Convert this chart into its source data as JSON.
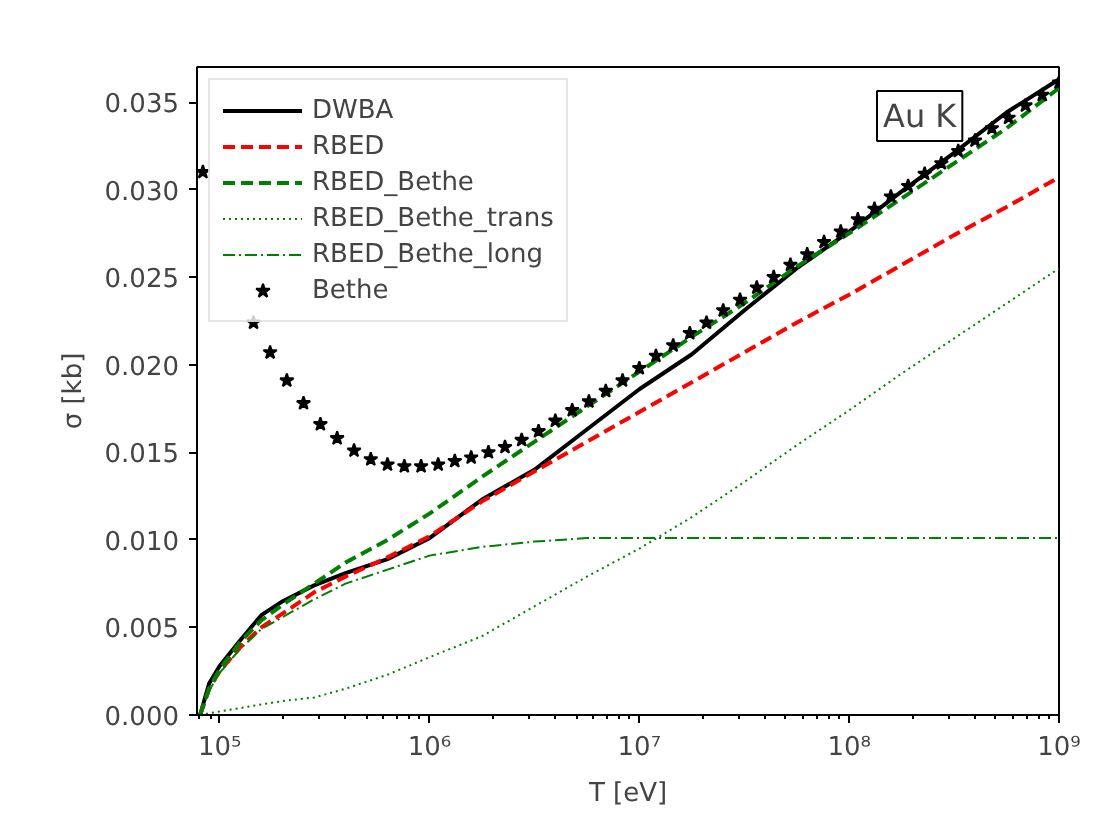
{
  "chart_data": {
    "type": "line",
    "xlabel": "T [eV]",
    "ylabel": "σ [kb]",
    "annotations": [
      "Au K"
    ],
    "log": "x",
    "grid": false,
    "legend": "top left",
    "xlim": [
      78000,
      1000000000
    ],
    "xticks": [
      {
        "value": 100000,
        "label": "10⁵"
      },
      {
        "value": 1000000,
        "label": "10⁶"
      },
      {
        "value": 10000000,
        "label": "10⁷"
      },
      {
        "value": 100000000,
        "label": "10⁸"
      },
      {
        "value": 1000000000,
        "label": "10⁹"
      }
    ],
    "ylim": [
      0,
      0.037
    ],
    "yticks": [
      {
        "value": 0,
        "label": "0.000"
      },
      {
        "value": 0.005,
        "label": "0.005"
      },
      {
        "value": 0.01,
        "label": "0.010"
      },
      {
        "value": 0.015,
        "label": "0.015"
      },
      {
        "value": 0.02,
        "label": "0.020"
      },
      {
        "value": 0.025,
        "label": "0.025"
      },
      {
        "value": 0.03,
        "label": "0.030"
      },
      {
        "value": 0.035,
        "label": "0.035"
      }
    ],
    "x": [
      80700,
      89100,
      100000,
      126000,
      158000,
      200000,
      282000,
      398000,
      631000,
      1000000,
      1780000,
      3160000,
      5620000,
      10000000,
      17800000,
      31600000,
      56200000,
      100000000,
      178000000,
      316000000,
      562000000,
      1000000000
    ],
    "series": [
      {
        "name": "DWBA",
        "color": "#000000",
        "line_style": "solid",
        "values": [
          0,
          0.0018,
          0.0028,
          0.0043,
          0.0057,
          0.0065,
          0.0074,
          0.0081,
          0.0089,
          0.0101,
          0.0123,
          0.014,
          0.0163,
          0.0186,
          0.0206,
          0.0231,
          0.0255,
          0.0276,
          0.0299,
          0.0321,
          0.0344,
          0.0363
        ]
      },
      {
        "name": "RBED",
        "color": "#ff0000",
        "line_style": "dashed",
        "values": [
          0,
          0.0015,
          0.0025,
          0.0039,
          0.005,
          0.0058,
          0.007,
          0.0079,
          0.009,
          0.0102,
          0.0122,
          0.0139,
          0.0156,
          0.0173,
          0.019,
          0.0207,
          0.0224,
          0.024,
          0.0257,
          0.0274,
          0.029,
          0.0307
        ]
      },
      {
        "name": "RBED_Bethe",
        "color": "#008000",
        "line_style": "dashed",
        "values": [
          0,
          0.0015,
          0.0026,
          0.0042,
          0.0054,
          0.0063,
          0.0075,
          0.0087,
          0.01,
          0.0115,
          0.0136,
          0.0156,
          0.0176,
          0.0196,
          0.0216,
          0.0235,
          0.0256,
          0.0275,
          0.0295,
          0.0315,
          0.0335,
          0.0358
        ]
      },
      {
        "name": "RBED_Bethe_trans",
        "color": "#008000",
        "line_style": "dotted",
        "values": [
          0,
          0.0001,
          0.0002,
          0.0004,
          0.0006,
          0.0008,
          0.001,
          0.0015,
          0.0023,
          0.0033,
          0.0045,
          0.0062,
          0.0079,
          0.0095,
          0.0113,
          0.0133,
          0.0154,
          0.0174,
          0.0195,
          0.0215,
          0.0235,
          0.0255
        ]
      },
      {
        "name": "RBED_Bethe_long",
        "color": "#008000",
        "line_style": "dashdot",
        "values": [
          0,
          0.0014,
          0.0024,
          0.0038,
          0.0049,
          0.0056,
          0.0066,
          0.0075,
          0.0083,
          0.0091,
          0.0096,
          0.0099,
          0.0101,
          0.0101,
          0.0101,
          0.0101,
          0.0101,
          0.0101,
          0.0101,
          0.0101,
          0.0101,
          0.0101
        ]
      },
      {
        "name": "Bethe",
        "type": "scatter",
        "marker": "star",
        "color": "#000000",
        "x": [
          83200,
          100000,
          120000,
          145000,
          174000,
          209000,
          251000,
          302000,
          363000,
          437000,
          525000,
          631000,
          759000,
          912000,
          1100000,
          1320000,
          1580000,
          1910000,
          2290000,
          2750000,
          3310000,
          3980000,
          4790000,
          5750000,
          6920000,
          8320000,
          10000000,
          12000000,
          14500000,
          17400000,
          20900000,
          25100000,
          30200000,
          36300000,
          43700000,
          52500000,
          63100000,
          75900000,
          91200000,
          110000000,
          132000000,
          158000000,
          191000000,
          229000000,
          275000000,
          331000000,
          398000000,
          479000000,
          575000000,
          692000000,
          832000000,
          1000000000
        ],
        "values": [
          0.031,
          null,
          null,
          0.0224,
          0.0207,
          0.0191,
          0.0178,
          0.0166,
          0.0158,
          0.0151,
          0.0146,
          0.0143,
          0.0142,
          0.0142,
          0.0143,
          0.0145,
          0.0147,
          0.015,
          0.0153,
          0.0157,
          0.0162,
          0.0168,
          0.0174,
          0.0179,
          0.0185,
          0.0191,
          0.0198,
          0.0205,
          0.0211,
          0.0218,
          0.0224,
          0.0231,
          0.0237,
          0.0244,
          0.025,
          0.0257,
          0.0263,
          0.027,
          0.0276,
          0.0283,
          0.0289,
          0.0296,
          0.0302,
          0.0309,
          0.0315,
          0.0322,
          0.0328,
          0.0335,
          0.0341,
          0.0348,
          0.0354,
          0.0361
        ]
      }
    ]
  }
}
